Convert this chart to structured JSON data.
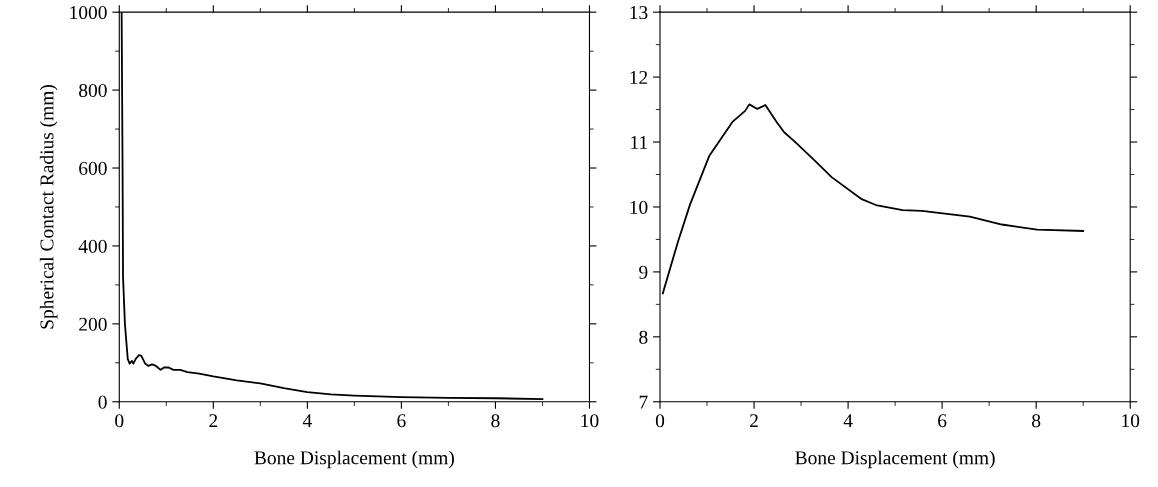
{
  "chart_data": [
    {
      "type": "line",
      "xlabel": "Bone Displacement (mm)",
      "ylabel": "Spherical Contact Radius (mm)",
      "xlim": [
        0,
        10
      ],
      "xticks": [
        0,
        2,
        4,
        6,
        8,
        10
      ],
      "ylim": [
        0,
        1000
      ],
      "yticks": [
        0,
        200,
        400,
        600,
        800,
        1000
      ],
      "grid": false,
      "legend": false,
      "series": [
        {
          "color": "#000000",
          "x": [
            0.05,
            0.07,
            0.08,
            0.12,
            0.18,
            0.22,
            0.27,
            0.3,
            0.35,
            0.42,
            0.47,
            0.55,
            0.62,
            0.7,
            0.78,
            0.88,
            0.95,
            1.05,
            1.15,
            1.3,
            1.45,
            1.7,
            2.0,
            2.5,
            3.0,
            3.5,
            4.0,
            4.5,
            5.0,
            6.0,
            7.0,
            8.0,
            9.0
          ],
          "values": [
            1000,
            600,
            320,
            200,
            110,
            98,
            105,
            98,
            110,
            120,
            118,
            98,
            92,
            96,
            92,
            82,
            88,
            88,
            82,
            82,
            76,
            72,
            65,
            55,
            47,
            35,
            25,
            19,
            16,
            12,
            10,
            9,
            7
          ]
        }
      ]
    },
    {
      "type": "line",
      "xlabel": "Bone Displacement (mm)",
      "xlim": [
        0,
        10
      ],
      "xticks": [
        0,
        2,
        4,
        6,
        8,
        10
      ],
      "ylim": [
        7,
        13
      ],
      "yticks": [
        7,
        8,
        9,
        10,
        11,
        12,
        13
      ],
      "grid": false,
      "legend": false,
      "series": [
        {
          "color": "#000000",
          "x": [
            0.06,
            0.38,
            0.64,
            1.05,
            1.54,
            1.81,
            1.9,
            2.07,
            2.24,
            2.48,
            2.64,
            2.86,
            3.27,
            3.65,
            4.29,
            4.59,
            5.16,
            5.57,
            6.59,
            7.27,
            8.02,
            9.0
          ],
          "values": [
            8.67,
            9.46,
            10.04,
            10.79,
            11.31,
            11.48,
            11.58,
            11.51,
            11.57,
            11.31,
            11.15,
            11.01,
            10.73,
            10.46,
            10.12,
            10.03,
            9.95,
            9.94,
            9.85,
            9.73,
            9.65,
            9.63
          ]
        }
      ]
    }
  ]
}
